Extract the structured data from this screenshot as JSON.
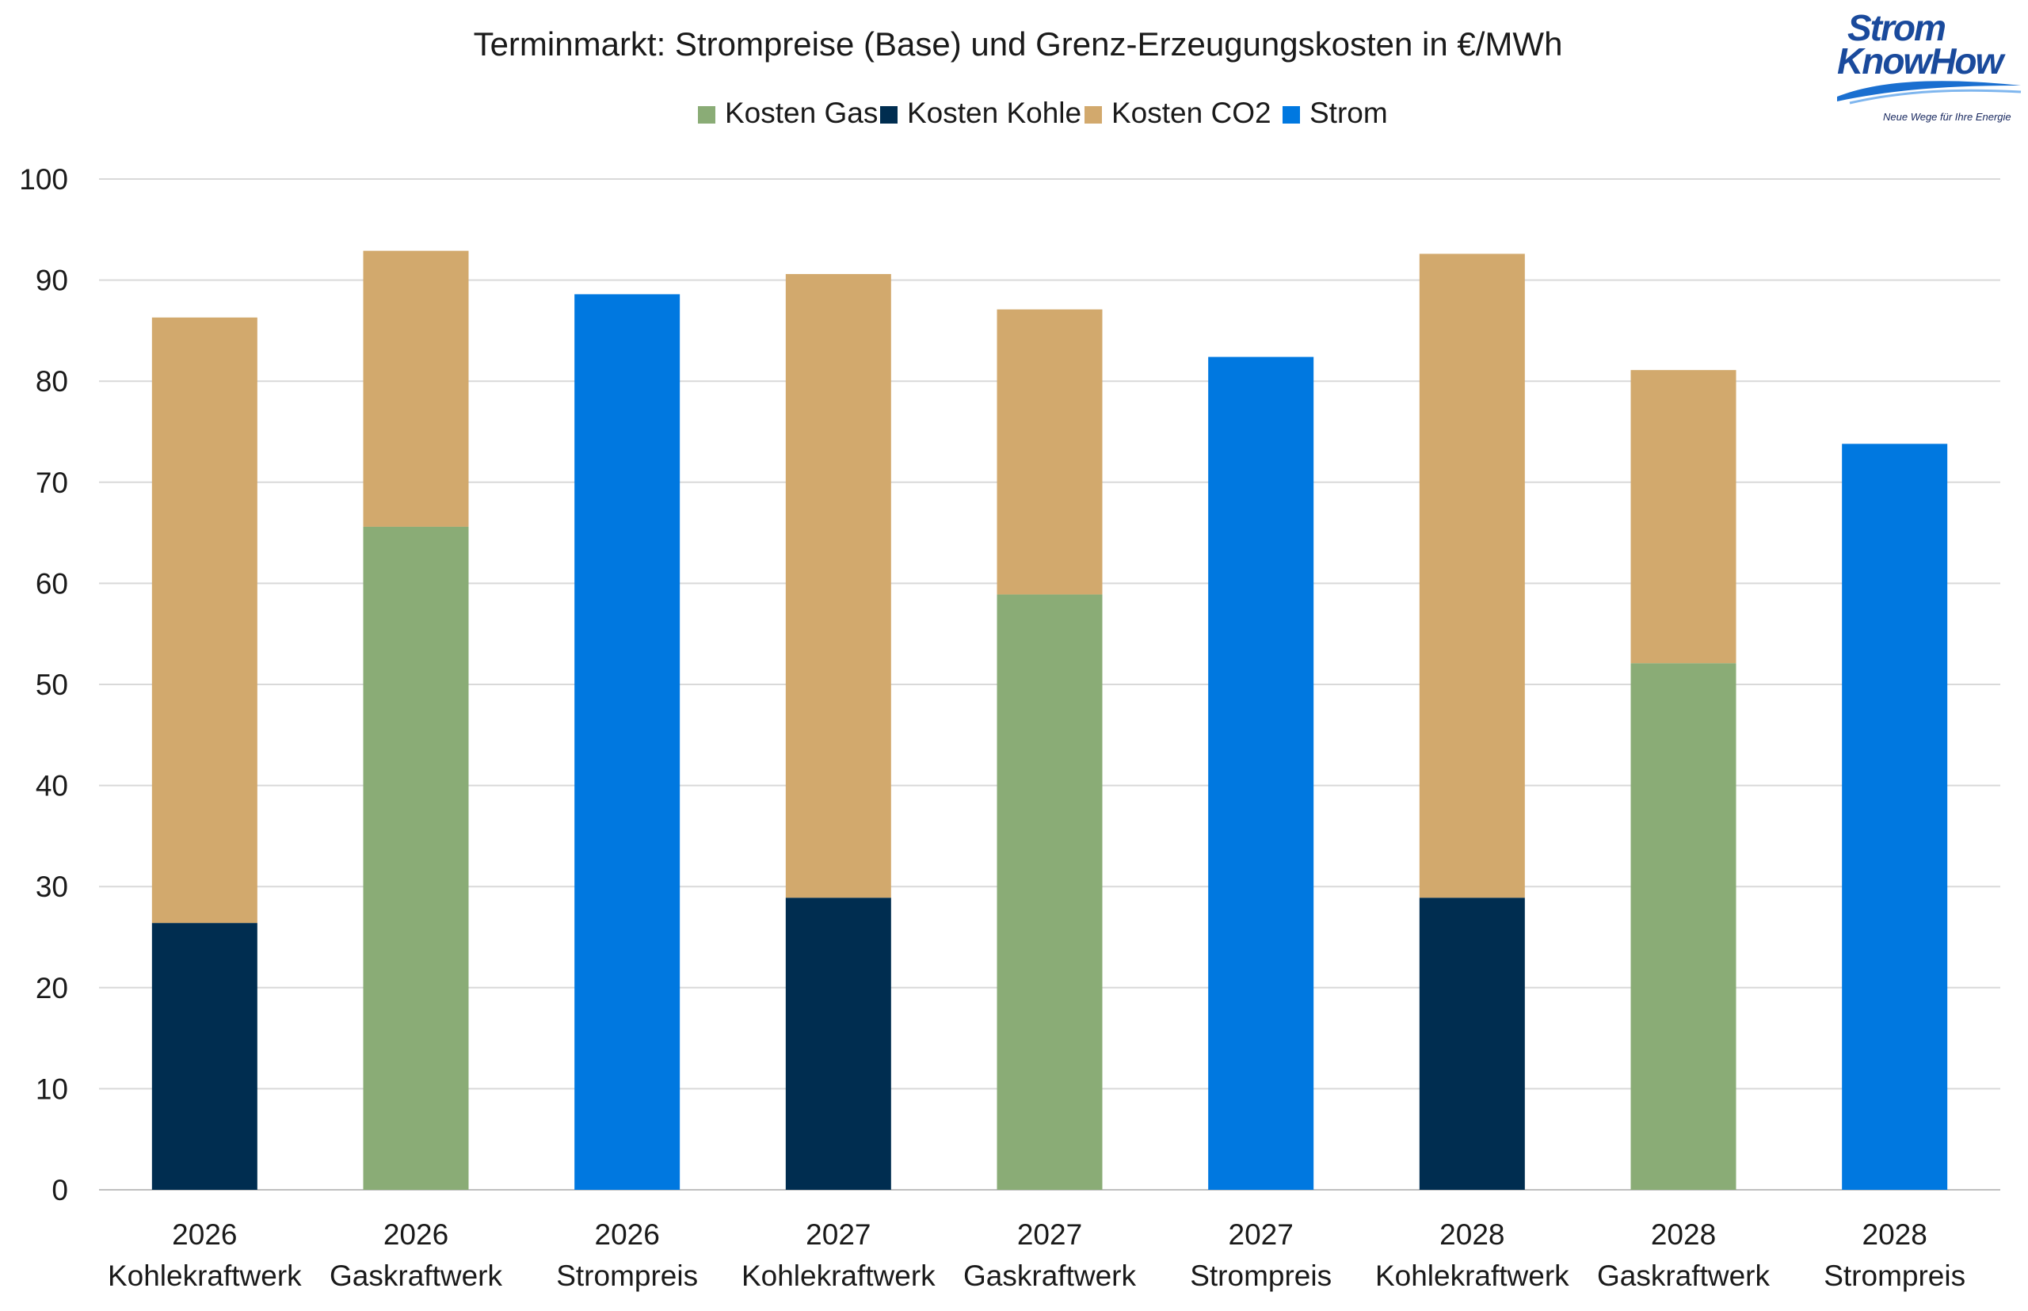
{
  "logo": {
    "line1": "Strom",
    "line2": "KnowHow",
    "tagline": "Neue Wege für Ihre Energie"
  },
  "colors": {
    "gas": "#8aac76",
    "kohle": "#002d50",
    "co2": "#d2a96d",
    "strom": "#0078e0",
    "grid": "#d9d9d9",
    "text": "#1a1a1a"
  },
  "chart_data": {
    "type": "bar",
    "stacked": true,
    "title": "Terminmarkt: Strompreise (Base) und Grenz-Erzeugungskosten in €/MWh",
    "xlabel": "",
    "ylabel": "",
    "ylim": [
      0,
      100
    ],
    "yticks": [
      0,
      10,
      20,
      30,
      40,
      50,
      60,
      70,
      80,
      90,
      100
    ],
    "grid": true,
    "legend_position": "top-center",
    "categories": [
      [
        "2026",
        "Kohlekraftwerk"
      ],
      [
        "2026",
        "Gaskraftwerk"
      ],
      [
        "2026",
        "Strompreis"
      ],
      [
        "2027",
        "Kohlekraftwerk"
      ],
      [
        "2027",
        "Gaskraftwerk"
      ],
      [
        "2027",
        "Strompreis"
      ],
      [
        "2028",
        "Kohlekraftwerk"
      ],
      [
        "2028",
        "Gaskraftwerk"
      ],
      [
        "2028",
        "Strompreis"
      ]
    ],
    "series": [
      {
        "name": "Kosten Gas",
        "key": "gas",
        "values": [
          0,
          65.6,
          0,
          0,
          58.9,
          0,
          0,
          52.1,
          0
        ]
      },
      {
        "name": "Kosten Kohle",
        "key": "kohle",
        "values": [
          26.4,
          0,
          0,
          28.9,
          0,
          0,
          28.9,
          0,
          0
        ]
      },
      {
        "name": "Kosten CO2",
        "key": "co2",
        "values": [
          59.9,
          27.3,
          0,
          61.7,
          28.2,
          0,
          63.7,
          29.0,
          0
        ]
      },
      {
        "name": "Strom",
        "key": "strom",
        "values": [
          0,
          0,
          88.6,
          0,
          0,
          82.4,
          0,
          0,
          73.8
        ]
      }
    ]
  }
}
